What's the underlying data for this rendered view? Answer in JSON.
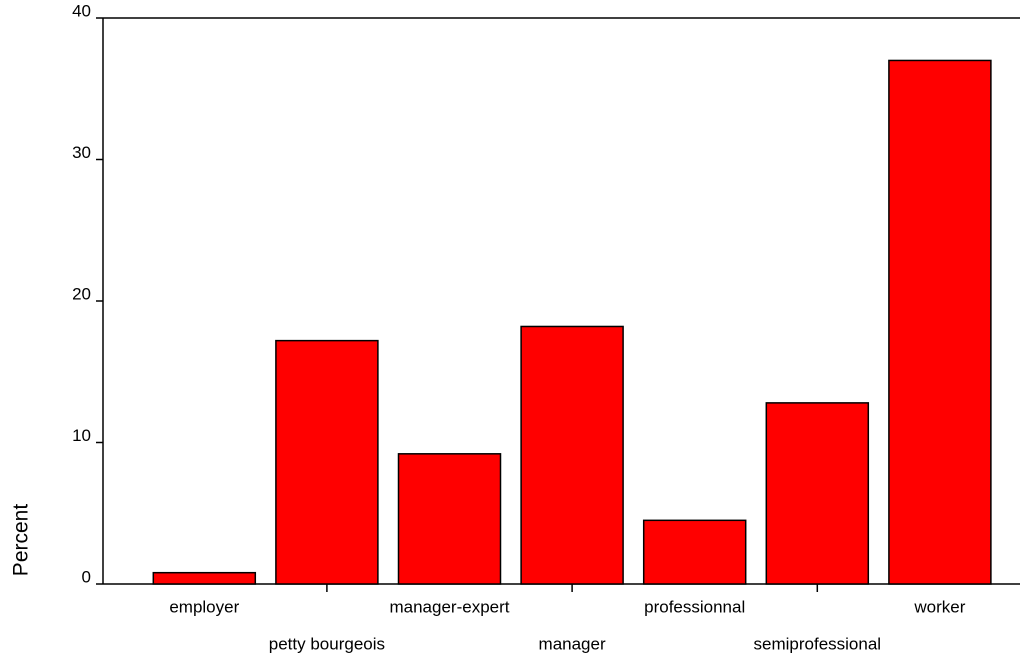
{
  "chart_data": {
    "type": "bar",
    "y_label": "Percent",
    "categories": [
      "employer",
      "petty bourgeois",
      "manager-expert",
      "manager",
      "professionnal",
      "semiprofessional",
      "worker"
    ],
    "values": [
      0.8,
      17.2,
      9.2,
      18.2,
      4.5,
      12.8,
      37.0
    ],
    "color": "#ff0000",
    "ylim": [
      0,
      40
    ],
    "yticks": [
      0,
      10,
      20,
      30,
      40
    ],
    "grid": false
  }
}
